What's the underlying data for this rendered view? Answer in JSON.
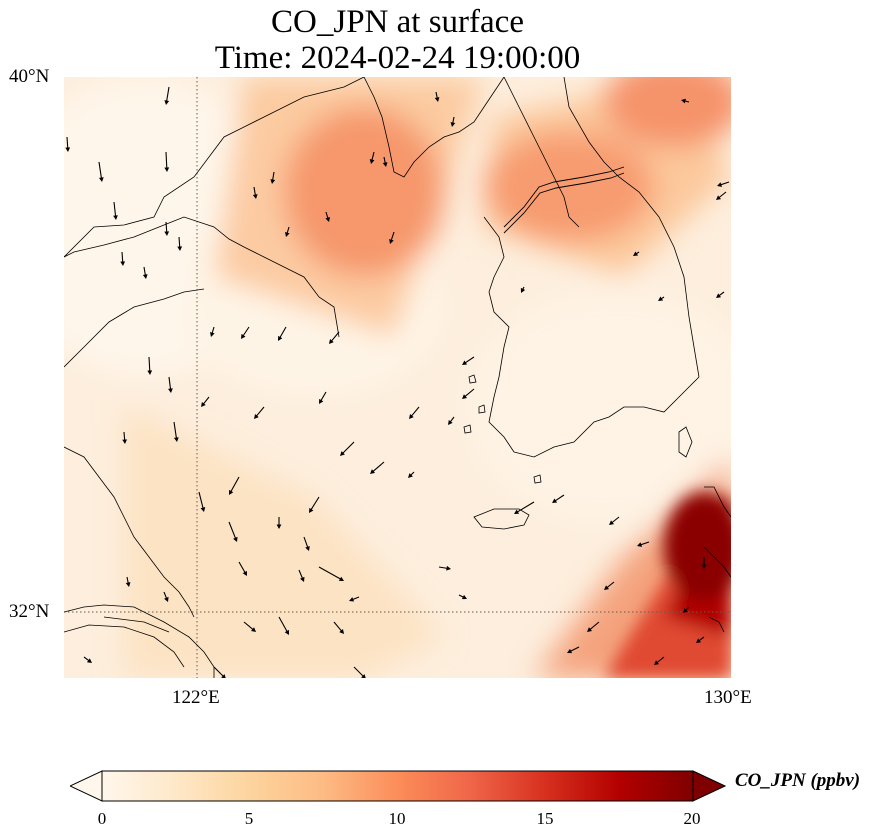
{
  "title": {
    "line1": "CO_JPN at surface",
    "line2": "Time: 2024-02-24 19:00:00"
  },
  "map": {
    "region": "Yellow Sea / Korean Peninsula",
    "extent": {
      "lon_min": 120,
      "lon_max": 130,
      "lat_min": 31,
      "lat_max": 40
    },
    "lat_labels": [
      "40°N",
      "32°N"
    ],
    "lon_labels": [
      "122°E",
      "130°E"
    ],
    "gridlines": {
      "style": "dotted",
      "lons": [
        122
      ],
      "lats": [
        32
      ]
    },
    "layers": [
      "CO concentration field (shaded)",
      "surface wind vectors (arrows)",
      "coastlines"
    ],
    "arrow_color": "#000000",
    "coastline_color": "#000000"
  },
  "colorbar": {
    "label": "CO_JPN (ppbv)",
    "colormap": "OrRd",
    "min": 0,
    "max": 20,
    "extend": "both",
    "ticks": [
      "0",
      "5",
      "10",
      "15",
      "20"
    ],
    "colors": [
      "#fff7ec",
      "#fee8c8",
      "#fdd49e",
      "#fdbb84",
      "#fc8d59",
      "#ef6548",
      "#d7301f",
      "#b30000",
      "#7f0000"
    ]
  }
}
